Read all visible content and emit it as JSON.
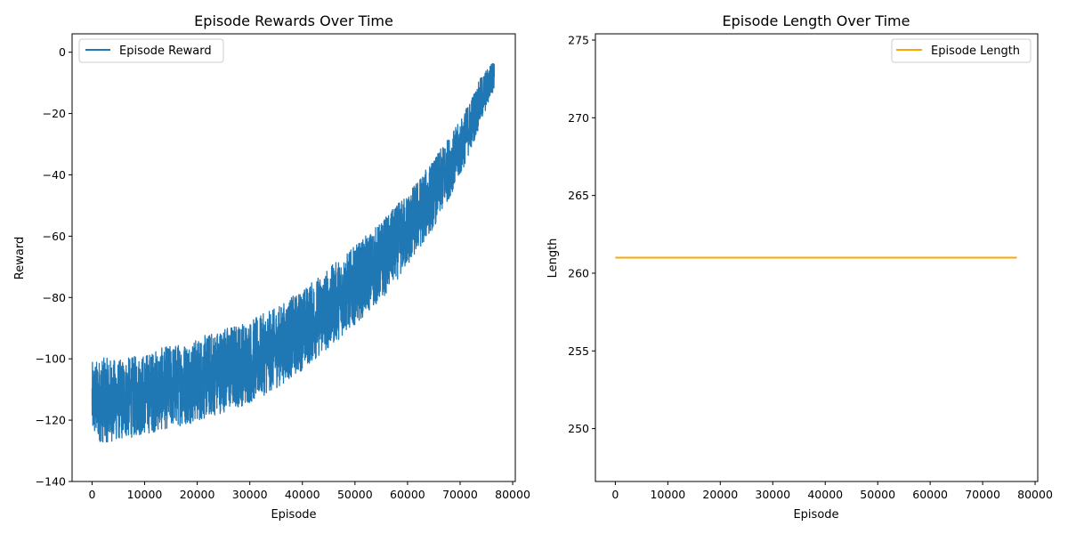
{
  "chart_data": [
    {
      "type": "line",
      "title": "Episode Rewards Over Time",
      "xlabel": "Episode",
      "ylabel": "Reward",
      "xlim": [
        -3800,
        80500
      ],
      "ylim": [
        -140,
        6
      ],
      "xticks": [
        0,
        10000,
        20000,
        30000,
        40000,
        50000,
        60000,
        70000,
        80000
      ],
      "xtick_labels": [
        "0",
        "10000",
        "20000",
        "30000",
        "40000",
        "50000",
        "60000",
        "70000",
        "80000"
      ],
      "yticks": [
        -140,
        -120,
        -100,
        -80,
        -60,
        -40,
        -20,
        0
      ],
      "ytick_labels": [
        "−140",
        "−120",
        "−100",
        "−80",
        "−60",
        "−40",
        "−20",
        "0"
      ],
      "grid": false,
      "legend": "top-left",
      "series": [
        {
          "name": "Episode Reward",
          "color": "#1f77b4",
          "x": [
            0,
            2000,
            5000,
            10000,
            15000,
            20000,
            25000,
            30000,
            35000,
            40000,
            45000,
            50000,
            55000,
            60000,
            65000,
            70000,
            74000,
            76500
          ],
          "y_high": [
            -98,
            -96,
            -97,
            -95,
            -92,
            -90,
            -86,
            -84,
            -80,
            -74,
            -67,
            -60,
            -52,
            -43,
            -32,
            -20,
            -6,
            -1
          ],
          "y_low": [
            -129,
            -131,
            -130,
            -128,
            -126,
            -124,
            -121,
            -118,
            -113,
            -107,
            -100,
            -92,
            -84,
            -73,
            -60,
            -43,
            -25,
            -13
          ]
        }
      ]
    },
    {
      "type": "line",
      "title": "Episode Length Over Time",
      "xlabel": "Episode",
      "ylabel": "Length",
      "xlim": [
        -3800,
        80500
      ],
      "ylim": [
        246.6,
        275.4
      ],
      "xticks": [
        0,
        10000,
        20000,
        30000,
        40000,
        50000,
        60000,
        70000,
        80000
      ],
      "xtick_labels": [
        "0",
        "10000",
        "20000",
        "30000",
        "40000",
        "50000",
        "60000",
        "70000",
        "80000"
      ],
      "yticks": [
        250,
        255,
        260,
        265,
        270,
        275
      ],
      "ytick_labels": [
        "250",
        "255",
        "260",
        "265",
        "270",
        "275"
      ],
      "grid": false,
      "legend": "top-right",
      "series": [
        {
          "name": "Episode Length",
          "color": "#ffa500",
          "x": [
            0,
            76500
          ],
          "y": [
            261,
            261
          ]
        }
      ]
    }
  ]
}
